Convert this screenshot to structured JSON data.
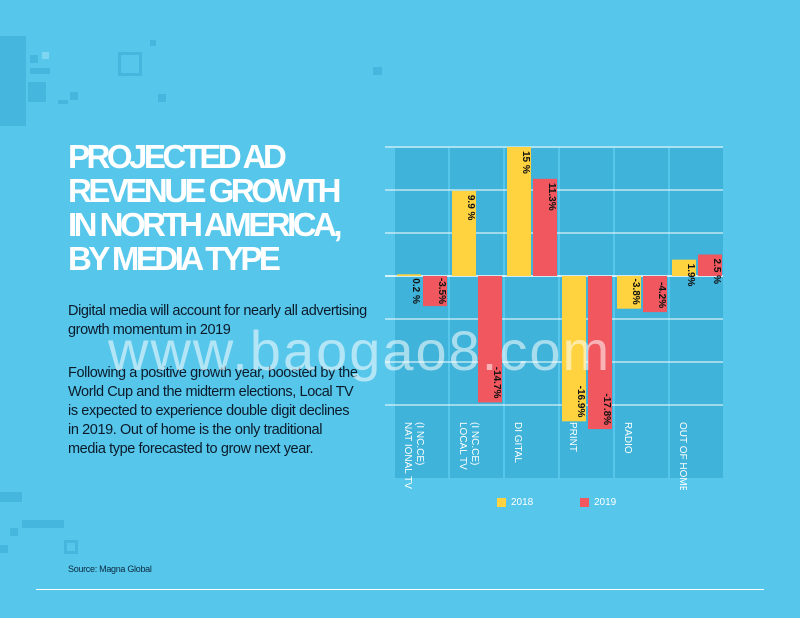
{
  "title": "PROJECTED AD REVENUE GROWTH IN NORTH AMERICA, BY MEDIA TYPE",
  "paragraph1": "Digital media will account for nearly all advertising growth momentum in 2019",
  "paragraph2": "Following a positive growth year, boosted by the World Cup and the midterm elections, Local TV is expected to experience double digit declines in 2019. Out of home is the only traditional media type forecasted to grow next year.",
  "source": "Source: Magna Global",
  "watermark": "www.baogao8.com",
  "colors": {
    "background": "#56c6ea",
    "column_band": "#3fb3d9",
    "series_2018": "#ffd23f",
    "series_2019": "#f0575f"
  },
  "chart_data": {
    "type": "bar",
    "categories": [
      "NATIONAL TV (INCL. CE)",
      "LOCAL TV (INCL. CE)",
      "DIGITAL",
      "PRINT",
      "RADIO",
      "OUT OF HOME"
    ],
    "category_labels": [
      "NAT IONAL TV\n(I NC.CE)",
      "LOCAL TV\n(I NC.CE)",
      "DI GITAL",
      "PRINT",
      "RADIO",
      "OUT OF HOME"
    ],
    "series": [
      {
        "name": "2018",
        "values": [
          0.2,
          9.9,
          15,
          -16.9,
          -3.8,
          1.9
        ],
        "labels": [
          "0.2 %",
          "9.9 %",
          "15 %",
          "-16.9%",
          "-3.8%",
          "1.9%"
        ]
      },
      {
        "name": "2019",
        "values": [
          -3.5,
          -14.7,
          11.3,
          -17.8,
          -4.2,
          2.5
        ],
        "labels": [
          "-3.5%",
          "-14.7%",
          "11.3%",
          "-17.8%",
          "-4.2%",
          "2.5 %"
        ]
      }
    ],
    "ylim": [
      -18.5,
      15
    ],
    "legend": {
      "position": "bottom",
      "entries": [
        "2018",
        "2019"
      ]
    }
  }
}
